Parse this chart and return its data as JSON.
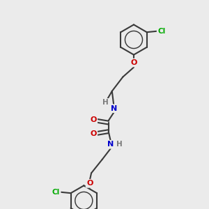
{
  "background_color": "#ebebeb",
  "atom_colors": {
    "C": "#3a3a3a",
    "N": "#0000cc",
    "O": "#cc0000",
    "Cl": "#00aa00",
    "H": "#7a7a7a"
  },
  "bond_color": "#3a3a3a",
  "bond_width": 1.5
}
